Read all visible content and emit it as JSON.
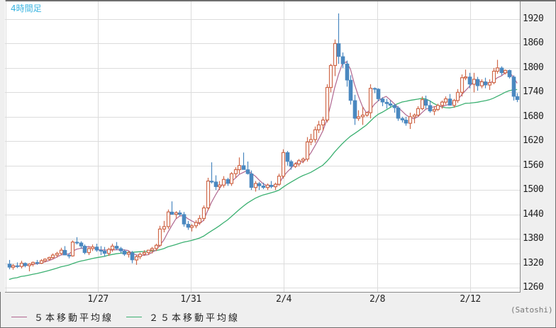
{
  "chart_data": {
    "type": "candlestick",
    "title": "4時間足",
    "unit_label": "(Satoshi)",
    "ylim": [
      1250,
      1940
    ],
    "y_ticks": [
      1920,
      1860,
      1800,
      1740,
      1680,
      1620,
      1560,
      1500,
      1440,
      1380,
      1320,
      1260
    ],
    "x_ticks": [
      {
        "label": "1/27",
        "index": 24
      },
      {
        "label": "1/31",
        "index": 48
      },
      {
        "label": "2/4",
        "index": 72
      },
      {
        "label": "2/8",
        "index": 96
      },
      {
        "label": "2/12",
        "index": 120
      }
    ],
    "grid": true,
    "colors": {
      "up": "#d0694a",
      "down": "#4a88c0",
      "ma5": "#b0668f",
      "ma25": "#3bb071",
      "grid": "#dcdcdc"
    },
    "legend": [
      {
        "label": "５本移動平均線",
        "color": "#b0668f"
      },
      {
        "label": "２５本移動平均線",
        "color": "#3bb071"
      }
    ],
    "candles": [
      [
        1318,
        1328,
        1305,
        1310
      ],
      [
        1310,
        1318,
        1304,
        1314
      ],
      [
        1314,
        1322,
        1308,
        1312
      ],
      [
        1312,
        1326,
        1307,
        1320
      ],
      [
        1320,
        1322,
        1310,
        1314
      ],
      [
        1314,
        1320,
        1300,
        1318
      ],
      [
        1318,
        1324,
        1312,
        1322
      ],
      [
        1322,
        1328,
        1316,
        1320
      ],
      [
        1320,
        1330,
        1318,
        1326
      ],
      [
        1326,
        1332,
        1322,
        1330
      ],
      [
        1330,
        1336,
        1326,
        1334
      ],
      [
        1334,
        1344,
        1330,
        1340
      ],
      [
        1340,
        1348,
        1334,
        1344
      ],
      [
        1344,
        1358,
        1340,
        1352
      ],
      [
        1352,
        1362,
        1346,
        1340
      ],
      [
        1340,
        1344,
        1332,
        1338
      ],
      [
        1338,
        1376,
        1336,
        1372
      ],
      [
        1372,
        1384,
        1366,
        1370
      ],
      [
        1370,
        1374,
        1356,
        1362
      ],
      [
        1362,
        1366,
        1342,
        1346
      ],
      [
        1346,
        1360,
        1340,
        1356
      ],
      [
        1356,
        1366,
        1350,
        1360
      ],
      [
        1360,
        1368,
        1348,
        1352
      ],
      [
        1352,
        1362,
        1340,
        1350
      ],
      [
        1350,
        1360,
        1336,
        1344
      ],
      [
        1344,
        1358,
        1338,
        1354
      ],
      [
        1354,
        1368,
        1348,
        1362
      ],
      [
        1362,
        1372,
        1352,
        1356
      ],
      [
        1356,
        1360,
        1344,
        1350
      ],
      [
        1350,
        1354,
        1338,
        1342
      ],
      [
        1342,
        1350,
        1334,
        1346
      ],
      [
        1346,
        1350,
        1320,
        1328
      ],
      [
        1328,
        1340,
        1316,
        1336
      ],
      [
        1336,
        1346,
        1330,
        1342
      ],
      [
        1342,
        1352,
        1338,
        1346
      ],
      [
        1346,
        1352,
        1340,
        1352
      ],
      [
        1352,
        1360,
        1344,
        1356
      ],
      [
        1356,
        1368,
        1350,
        1364
      ],
      [
        1364,
        1412,
        1360,
        1404
      ],
      [
        1404,
        1424,
        1396,
        1410
      ],
      [
        1410,
        1452,
        1404,
        1446
      ],
      [
        1446,
        1472,
        1440,
        1440
      ],
      [
        1440,
        1448,
        1430,
        1444
      ],
      [
        1444,
        1450,
        1436,
        1440
      ],
      [
        1440,
        1446,
        1410,
        1416
      ],
      [
        1416,
        1424,
        1402,
        1408
      ],
      [
        1408,
        1416,
        1398,
        1412
      ],
      [
        1412,
        1426,
        1406,
        1420
      ],
      [
        1420,
        1438,
        1414,
        1430
      ],
      [
        1430,
        1462,
        1424,
        1456
      ],
      [
        1456,
        1530,
        1450,
        1522
      ],
      [
        1522,
        1568,
        1516,
        1520
      ],
      [
        1520,
        1536,
        1500,
        1508
      ],
      [
        1508,
        1522,
        1500,
        1512
      ],
      [
        1512,
        1534,
        1506,
        1526
      ],
      [
        1526,
        1530,
        1510,
        1516
      ],
      [
        1516,
        1544,
        1510,
        1540
      ],
      [
        1540,
        1556,
        1530,
        1550
      ],
      [
        1550,
        1580,
        1540,
        1560
      ],
      [
        1560,
        1592,
        1552,
        1550
      ],
      [
        1550,
        1570,
        1538,
        1540
      ],
      [
        1540,
        1548,
        1500,
        1506
      ],
      [
        1506,
        1522,
        1496,
        1516
      ],
      [
        1516,
        1520,
        1500,
        1510
      ],
      [
        1510,
        1518,
        1502,
        1506
      ],
      [
        1506,
        1516,
        1500,
        1512
      ],
      [
        1512,
        1522,
        1504,
        1508
      ],
      [
        1508,
        1518,
        1500,
        1514
      ],
      [
        1514,
        1540,
        1510,
        1534
      ],
      [
        1534,
        1600,
        1528,
        1592
      ],
      [
        1592,
        1596,
        1560,
        1570
      ],
      [
        1570,
        1574,
        1550,
        1558
      ],
      [
        1558,
        1568,
        1554,
        1564
      ],
      [
        1564,
        1576,
        1558,
        1572
      ],
      [
        1572,
        1580,
        1566,
        1576
      ],
      [
        1576,
        1630,
        1570,
        1618
      ],
      [
        1618,
        1638,
        1610,
        1624
      ],
      [
        1624,
        1656,
        1616,
        1648
      ],
      [
        1648,
        1670,
        1640,
        1660
      ],
      [
        1660,
        1680,
        1646,
        1672
      ],
      [
        1672,
        1760,
        1666,
        1752
      ],
      [
        1752,
        1810,
        1740,
        1806
      ],
      [
        1806,
        1870,
        1780,
        1860
      ],
      [
        1860,
        1934,
        1810,
        1828
      ],
      [
        1828,
        1838,
        1800,
        1810
      ],
      [
        1810,
        1818,
        1754,
        1770
      ],
      [
        1770,
        1782,
        1710,
        1720
      ],
      [
        1720,
        1734,
        1660,
        1676
      ],
      [
        1676,
        1696,
        1670,
        1680
      ],
      [
        1680,
        1704,
        1660,
        1684
      ],
      [
        1684,
        1692,
        1680,
        1690
      ],
      [
        1690,
        1760,
        1676,
        1750
      ],
      [
        1750,
        1752,
        1738,
        1748
      ],
      [
        1748,
        1750,
        1718,
        1724
      ],
      [
        1724,
        1728,
        1706,
        1716
      ],
      [
        1716,
        1724,
        1700,
        1712
      ],
      [
        1712,
        1720,
        1704,
        1708
      ],
      [
        1708,
        1712,
        1690,
        1702
      ],
      [
        1702,
        1706,
        1670,
        1676
      ],
      [
        1676,
        1680,
        1666,
        1672
      ],
      [
        1672,
        1680,
        1658,
        1664
      ],
      [
        1664,
        1690,
        1650,
        1680
      ],
      [
        1680,
        1688,
        1664,
        1684
      ],
      [
        1684,
        1706,
        1680,
        1700
      ],
      [
        1700,
        1730,
        1696,
        1722
      ],
      [
        1722,
        1732,
        1700,
        1708
      ],
      [
        1708,
        1720,
        1690,
        1694
      ],
      [
        1694,
        1706,
        1684,
        1698
      ],
      [
        1698,
        1712,
        1694,
        1708
      ],
      [
        1708,
        1720,
        1700,
        1716
      ],
      [
        1716,
        1730,
        1710,
        1724
      ],
      [
        1724,
        1736,
        1716,
        1708
      ],
      [
        1708,
        1724,
        1702,
        1720
      ],
      [
        1720,
        1748,
        1714,
        1740
      ],
      [
        1740,
        1784,
        1730,
        1776
      ],
      [
        1776,
        1796,
        1770,
        1778
      ],
      [
        1778,
        1788,
        1750,
        1760
      ],
      [
        1760,
        1788,
        1740,
        1772
      ],
      [
        1772,
        1778,
        1744,
        1756
      ],
      [
        1756,
        1772,
        1750,
        1766
      ],
      [
        1766,
        1776,
        1750,
        1758
      ],
      [
        1758,
        1772,
        1746,
        1764
      ],
      [
        1764,
        1800,
        1760,
        1792
      ],
      [
        1792,
        1820,
        1786,
        1800
      ],
      [
        1800,
        1804,
        1782,
        1788
      ],
      [
        1788,
        1796,
        1784,
        1794
      ],
      [
        1794,
        1796,
        1774,
        1778
      ],
      [
        1778,
        1782,
        1720,
        1730
      ],
      [
        1730,
        1738,
        1716,
        1722
      ]
    ]
  },
  "header": {
    "title": "4時間足"
  },
  "footer": {
    "unit": "(Satoshi)",
    "legend": [
      {
        "label": "５本移動平均線"
      },
      {
        "label": "２５本移動平均線"
      }
    ]
  }
}
